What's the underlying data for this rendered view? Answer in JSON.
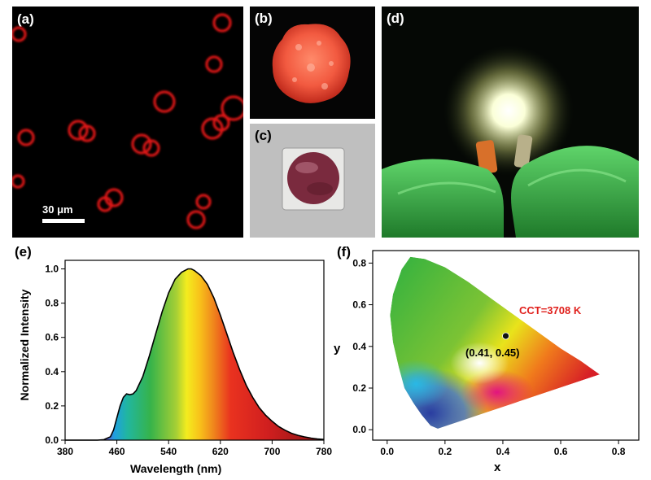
{
  "panels": {
    "a": {
      "label": "(a)",
      "scale_bar": "30 μm"
    },
    "b": {
      "label": "(b)"
    },
    "c": {
      "label": "(c)"
    },
    "d": {
      "label": "(d)"
    },
    "e": {
      "label": "(e)"
    },
    "f": {
      "label": "(f)"
    }
  },
  "chart_data": [
    {
      "type": "line",
      "panel": "(e)",
      "xlabel": "Wavelength (nm)",
      "ylabel": "Normalized Intensity",
      "xlim": [
        380,
        780
      ],
      "ylim": [
        0.0,
        1.05
      ],
      "xticks": [
        "380",
        "460",
        "540",
        "620",
        "700",
        "780"
      ],
      "yticks": [
        "0.0",
        "0.2",
        "0.4",
        "0.6",
        "0.8",
        "1.0"
      ],
      "x": [
        380,
        430,
        440,
        450,
        455,
        460,
        465,
        470,
        475,
        480,
        485,
        490,
        500,
        510,
        520,
        530,
        540,
        550,
        560,
        570,
        575,
        580,
        590,
        600,
        610,
        620,
        630,
        640,
        650,
        660,
        670,
        680,
        690,
        700,
        710,
        720,
        730,
        740,
        750,
        760,
        770,
        780
      ],
      "y": [
        0,
        0,
        0.003,
        0.02,
        0.06,
        0.13,
        0.2,
        0.25,
        0.27,
        0.265,
        0.27,
        0.29,
        0.37,
        0.49,
        0.62,
        0.75,
        0.86,
        0.94,
        0.98,
        1.0,
        1.0,
        0.99,
        0.96,
        0.91,
        0.83,
        0.73,
        0.62,
        0.51,
        0.41,
        0.32,
        0.25,
        0.19,
        0.145,
        0.11,
        0.08,
        0.058,
        0.04,
        0.028,
        0.019,
        0.012,
        0.007,
        0.004
      ],
      "fill": "spectral gradient under curve"
    },
    {
      "type": "scatter",
      "panel": "(f)",
      "xlabel": "x",
      "ylabel": "y",
      "xlim": [
        -0.05,
        0.87
      ],
      "ylim": [
        -0.05,
        0.86
      ],
      "xticks": [
        "0.0",
        "0.2",
        "0.4",
        "0.6",
        "0.8"
      ],
      "yticks": [
        "0.0",
        "0.2",
        "0.4",
        "0.6",
        "0.8"
      ],
      "points": [
        {
          "x": 0.41,
          "y": 0.45,
          "label": "(0.41, 0.45)"
        }
      ],
      "annotation": "CCT=3708 K",
      "background": "CIE 1931 chromaticity diagram"
    }
  ]
}
